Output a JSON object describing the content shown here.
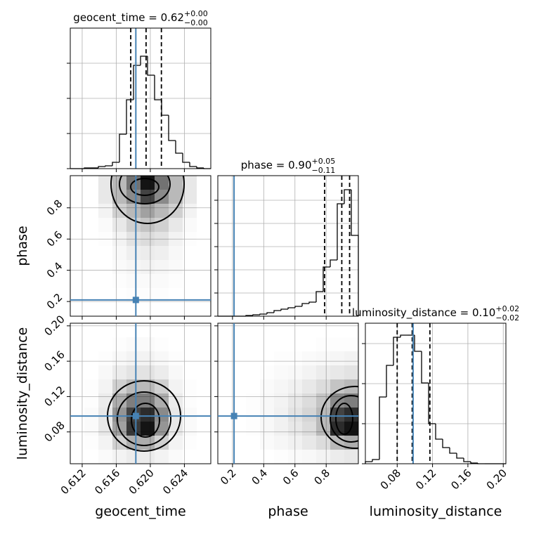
{
  "chart_data": {
    "type": "corner",
    "grid": true,
    "truth_color": "#4682b4",
    "parameters": [
      {
        "label": "geocent_time",
        "lim": [
          0.6106,
          0.6271
        ],
        "ticks": [
          0.612,
          0.616,
          {
            "value": 0.62,
            "label": "0.620"
          },
          0.624
        ]
      },
      {
        "label": "phase",
        "lim": [
          0.106,
          1.006
        ],
        "ticks": [
          0.2,
          0.4,
          0.6,
          0.8
        ]
      },
      {
        "label": "luminosity_distance",
        "lim": [
          0.044,
          0.203
        ],
        "ticks": [
          0.08,
          0.12,
          0.16,
          {
            "value": 0.2,
            "label": "0.20"
          }
        ]
      }
    ],
    "truths": [
      0.6183,
      0.21,
      0.098
    ],
    "histograms": [
      {
        "title": {
          "label": "geocent_time = 0.62",
          "plus": "+0.00",
          "minus": "−0.00"
        },
        "bins": [
          0.6106,
          0.611425,
          0.61225,
          0.613075,
          0.6139,
          0.614725,
          0.61555,
          0.616375,
          0.6172,
          0.618025,
          0.61885,
          0.619675,
          0.6205,
          0.621325,
          0.62215,
          0.622975,
          0.6238,
          0.624625,
          0.62545,
          0.626275,
          0.6271
        ],
        "counts": [
          0,
          0,
          1,
          1,
          3,
          4,
          9,
          49,
          98,
          147,
          160,
          133,
          98,
          76,
          40,
          22,
          9,
          3,
          1,
          0
        ],
        "ylim": [
          0,
          200
        ],
        "yticks": [
          0,
          50,
          100,
          150
        ],
        "quantiles": [
          0.6177,
          0.6195,
          0.6213
        ]
      },
      {
        "title": {
          "label": "phase = 0.90",
          "plus": "+0.05",
          "minus": "−0.11"
        },
        "bins": [
          0.106,
          0.151,
          0.196,
          0.241,
          0.286,
          0.331,
          0.376,
          0.421,
          0.466,
          0.511,
          0.556,
          0.601,
          0.646,
          0.691,
          0.736,
          0.781,
          0.826,
          0.871,
          0.916,
          0.961,
          1.006
        ],
        "counts": [
          0,
          0,
          0,
          0,
          1,
          2,
          3,
          5,
          8,
          10,
          12,
          14,
          18,
          20,
          35,
          70,
          80,
          160,
          180,
          115
        ],
        "ylim": [
          0,
          200
        ],
        "yticks": [
          0,
          33,
          66,
          99,
          132,
          165
        ],
        "quantiles": [
          0.79,
          0.9,
          0.95
        ]
      },
      {
        "title": {
          "label": "luminosity_distance = 0.10",
          "plus": "+0.02",
          "minus": "−0.02"
        },
        "bins": [
          0.044,
          0.05195,
          0.0599,
          0.06785,
          0.0758,
          0.08375,
          0.0917,
          0.09965,
          0.1076,
          0.11555,
          0.1235,
          0.13145,
          0.1394,
          0.14735,
          0.1553,
          0.16325,
          0.1712,
          0.17915,
          0.1871,
          0.19505,
          0.203
        ],
        "counts": [
          3,
          6,
          95,
          140,
          180,
          183,
          183,
          160,
          115,
          57,
          35,
          23,
          15,
          8,
          3,
          1,
          0,
          0,
          0,
          0
        ],
        "ylim": [
          0,
          200
        ],
        "yticks": [
          0,
          57,
          114,
          171
        ],
        "quantiles": [
          0.08,
          0.097,
          0.117
        ]
      }
    ],
    "pairs": [
      {
        "x": 0,
        "y": 1,
        "density": [
          [
            0,
            0,
            0.1,
            0.3,
            0.6,
            1.0,
            0.6,
            0.3,
            0.1,
            0
          ],
          [
            0,
            0,
            0.1,
            0.3,
            0.5,
            0.8,
            0.5,
            0.3,
            0.1,
            0
          ],
          [
            0,
            0,
            0.05,
            0.2,
            0.3,
            0.4,
            0.3,
            0.2,
            0.05,
            0
          ],
          [
            0,
            0,
            0.02,
            0.1,
            0.2,
            0.25,
            0.2,
            0.1,
            0.02,
            0
          ],
          [
            0,
            0,
            0.01,
            0.05,
            0.12,
            0.15,
            0.12,
            0.05,
            0.01,
            0
          ],
          [
            0,
            0,
            0,
            0.03,
            0.07,
            0.08,
            0.07,
            0.03,
            0,
            0
          ],
          [
            0,
            0,
            0,
            0.02,
            0.04,
            0.05,
            0.04,
            0.02,
            0,
            0
          ],
          [
            0,
            0,
            0,
            0.01,
            0.02,
            0.02,
            0.02,
            0.01,
            0,
            0
          ],
          [
            0,
            0,
            0,
            0,
            0.01,
            0.01,
            0.01,
            0,
            0,
            0
          ],
          [
            0,
            0,
            0,
            0,
            0,
            0,
            0,
            0,
            0,
            0
          ]
        ]
      },
      {
        "x": 0,
        "y": 2,
        "density": [
          [
            0,
            0,
            0,
            0,
            0,
            0,
            0,
            0,
            0,
            0
          ],
          [
            0,
            0,
            0,
            0.01,
            0.02,
            0.02,
            0.01,
            0,
            0,
            0
          ],
          [
            0,
            0,
            0.01,
            0.03,
            0.05,
            0.05,
            0.03,
            0.01,
            0,
            0
          ],
          [
            0,
            0,
            0.03,
            0.08,
            0.12,
            0.12,
            0.08,
            0.03,
            0,
            0
          ],
          [
            0,
            0.01,
            0.05,
            0.2,
            0.3,
            0.3,
            0.2,
            0.05,
            0.01,
            0
          ],
          [
            0,
            0.01,
            0.08,
            0.35,
            0.55,
            0.55,
            0.35,
            0.08,
            0.01,
            0
          ],
          [
            0,
            0.02,
            0.1,
            0.45,
            0.8,
            0.9,
            0.5,
            0.1,
            0.02,
            0
          ],
          [
            0,
            0.02,
            0.1,
            0.4,
            0.85,
            1.0,
            0.45,
            0.1,
            0.02,
            0
          ],
          [
            0,
            0.01,
            0.05,
            0.2,
            0.35,
            0.35,
            0.2,
            0.05,
            0.01,
            0
          ],
          [
            0,
            0,
            0.02,
            0.05,
            0.08,
            0.08,
            0.05,
            0.02,
            0,
            0
          ]
        ]
      },
      {
        "x": 1,
        "y": 2,
        "density": [
          [
            0,
            0,
            0,
            0,
            0,
            0,
            0,
            0,
            0,
            0
          ],
          [
            0,
            0,
            0,
            0,
            0,
            0,
            0,
            0.01,
            0.01,
            0.01
          ],
          [
            0,
            0,
            0,
            0,
            0.01,
            0.01,
            0.02,
            0.03,
            0.04,
            0.05
          ],
          [
            0,
            0,
            0,
            0.01,
            0.02,
            0.03,
            0.05,
            0.08,
            0.1,
            0.12
          ],
          [
            0,
            0,
            0,
            0.02,
            0.04,
            0.06,
            0.1,
            0.15,
            0.25,
            0.3
          ],
          [
            0,
            0,
            0.01,
            0.03,
            0.05,
            0.1,
            0.15,
            0.25,
            0.5,
            0.55
          ],
          [
            0,
            0,
            0.01,
            0.03,
            0.06,
            0.12,
            0.18,
            0.3,
            0.8,
            0.9
          ],
          [
            0,
            0,
            0.01,
            0.03,
            0.06,
            0.1,
            0.15,
            0.3,
            0.9,
            1.0
          ],
          [
            0,
            0,
            0,
            0.02,
            0.04,
            0.06,
            0.1,
            0.15,
            0.3,
            0.35
          ],
          [
            0,
            0,
            0,
            0,
            0.01,
            0.02,
            0.03,
            0.05,
            0.08,
            0.1
          ]
        ]
      }
    ]
  }
}
